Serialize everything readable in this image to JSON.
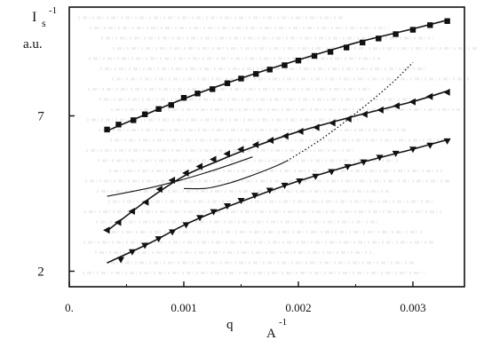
{
  "chart_data": {
    "type": "line",
    "xlabel_letter": "q",
    "xlabel_unit": "A",
    "xlabel_exp": "-1",
    "ylabel_top": "I",
    "ylabel_top_sub": "s",
    "ylabel_top_exp": "-1",
    "ylabel_unit": "a.u.",
    "x_ticks": [
      {
        "value": 0.0,
        "label": "0."
      },
      {
        "value": 0.001,
        "label": "0.001"
      },
      {
        "value": 0.002,
        "label": "0.002"
      },
      {
        "value": 0.003,
        "label": "0.003"
      }
    ],
    "y_ticks": [
      {
        "value": 2,
        "label": "2"
      },
      {
        "value": 7,
        "label": "7"
      }
    ],
    "xlim": [
      0.0,
      0.00345
    ],
    "ylim": [
      1.5,
      10.5
    ],
    "series": [
      {
        "marker": "square",
        "x": [
          0.00033,
          0.00043,
          0.00056,
          0.00066,
          0.00078,
          0.00089,
          0.001,
          0.00112,
          0.00125,
          0.00138,
          0.0015,
          0.00163,
          0.00175,
          0.00188,
          0.002,
          0.00214,
          0.00228,
          0.00242,
          0.00256,
          0.0027,
          0.00285,
          0.003,
          0.00315,
          0.0033
        ],
        "y": [
          6.56,
          6.72,
          6.86,
          7.05,
          7.22,
          7.35,
          7.58,
          7.72,
          7.86,
          8.05,
          8.2,
          8.35,
          8.49,
          8.63,
          8.78,
          8.93,
          9.06,
          9.2,
          9.36,
          9.49,
          9.63,
          9.77,
          9.92,
          10.05
        ]
      },
      {
        "marker": "triangle-left",
        "x": [
          0.00033,
          0.00043,
          0.00055,
          0.00067,
          0.00079,
          0.0009,
          0.00102,
          0.00114,
          0.00126,
          0.00138,
          0.0015,
          0.00163,
          0.00176,
          0.00189,
          0.00202,
          0.00216,
          0.0023,
          0.00244,
          0.00258,
          0.00272,
          0.00286,
          0.003,
          0.00315,
          0.0033
        ],
        "y": [
          3.32,
          3.57,
          3.93,
          4.22,
          4.64,
          4.93,
          5.16,
          5.37,
          5.6,
          5.78,
          5.92,
          6.07,
          6.21,
          6.35,
          6.5,
          6.63,
          6.77,
          6.9,
          7.05,
          7.19,
          7.32,
          7.45,
          7.62,
          7.76
        ]
      },
      {
        "marker": "triangle-down",
        "x": [
          0.00045,
          0.00055,
          0.00066,
          0.00078,
          0.0009,
          0.00102,
          0.00114,
          0.00126,
          0.00138,
          0.0015,
          0.00162,
          0.00175,
          0.00188,
          0.00201,
          0.00215,
          0.00229,
          0.00243,
          0.00257,
          0.00271,
          0.00285,
          0.003,
          0.00315,
          0.0033
        ],
        "y": [
          2.37,
          2.62,
          2.83,
          3.04,
          3.26,
          3.49,
          3.72,
          3.91,
          4.1,
          4.27,
          4.44,
          4.6,
          4.76,
          4.9,
          5.05,
          5.2,
          5.36,
          5.51,
          5.66,
          5.79,
          5.92,
          6.05,
          6.19
        ]
      }
    ],
    "fit_solid": [
      {
        "x": [
          0.00033,
          0.001,
          0.0015,
          0.002,
          0.0025,
          0.003,
          0.0033
        ],
        "y": [
          6.52,
          7.55,
          8.21,
          8.8,
          9.35,
          9.8,
          10.08
        ]
      },
      {
        "x": [
          0.00033,
          0.0007,
          0.001,
          0.0013,
          0.0016,
          0.002,
          0.0025,
          0.003,
          0.0033
        ],
        "y": [
          3.3,
          4.34,
          5.06,
          5.55,
          5.99,
          6.49,
          7.0,
          7.46,
          7.8
        ]
      },
      {
        "x": [
          0.00033,
          0.0007,
          0.001,
          0.0013,
          0.0016,
          0.002,
          0.0025,
          0.003,
          0.0033
        ],
        "y": [
          2.27,
          2.9,
          3.48,
          3.96,
          4.38,
          4.9,
          5.45,
          5.93,
          6.23
        ]
      },
      {
        "x": [
          0.00033,
          0.0007,
          0.001,
          0.0012,
          0.0014,
          0.0016
        ],
        "y": [
          4.41,
          4.68,
          4.96,
          5.18,
          5.42,
          5.68
        ]
      },
      {
        "x": [
          0.001,
          0.0012,
          0.0014,
          0.0016,
          0.0018,
          0.0019
        ],
        "y": [
          4.66,
          4.67,
          4.84,
          5.09,
          5.38,
          5.55
        ]
      }
    ],
    "fit_dotted": [
      {
        "x": [
          0.0019,
          0.0022,
          0.0025,
          0.0028,
          0.003
        ],
        "y": [
          5.55,
          6.25,
          7.08,
          8.0,
          8.72
        ]
      }
    ],
    "colors": {
      "line": "#151515",
      "marker": "#111111",
      "ghost_text": "#cfcfcf"
    }
  }
}
